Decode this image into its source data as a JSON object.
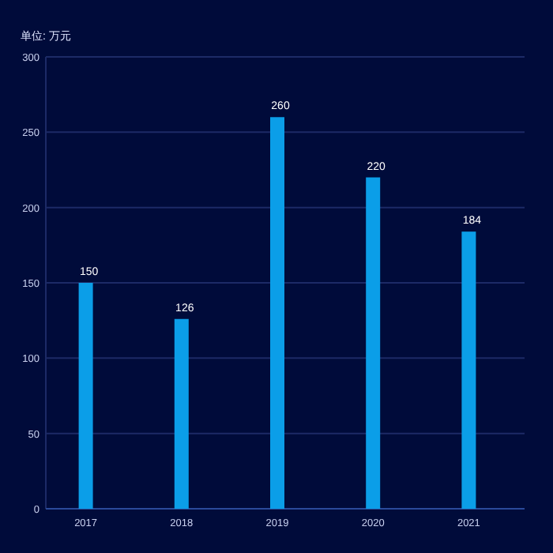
{
  "chart_data": {
    "type": "bar",
    "ylabel": "单位: 万元",
    "categories": [
      "2017",
      "2018",
      "2019",
      "2020",
      "2021"
    ],
    "values": [
      150,
      126,
      260,
      220,
      184
    ],
    "color": "#0b9ee8",
    "ylim": [
      0,
      300
    ],
    "yticks": [
      0,
      50,
      100,
      150,
      200,
      250,
      300
    ],
    "grid": "y",
    "data_labels": true
  }
}
